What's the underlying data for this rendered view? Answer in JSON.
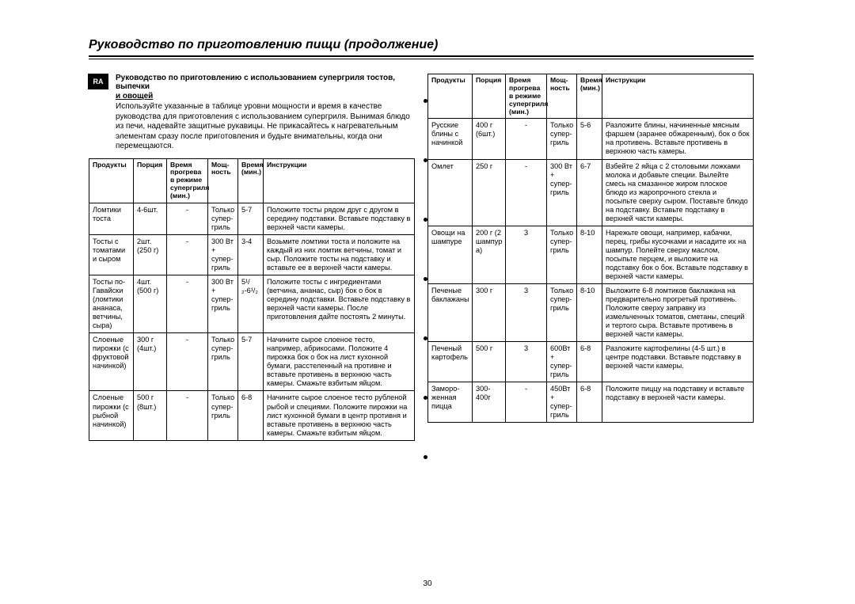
{
  "page": {
    "title": "Руководство по приготовлению пищи (продолжение)",
    "ra_label": "RA",
    "page_number": "30"
  },
  "intro": {
    "heading": "Руководство по приготовлению с использованием супергриля тостов, выпечки",
    "sub": "и овощей",
    "text": "Используйте указанные в таблице уровни мощности и время в качестве руководства для приготовления с использованием супергриля. Вынимая блюдо из печи, надевайте защитные рукавицы. Не прикасайтесь к нагревательным элементам сразу после приготовления и будьте внимательны, когда они перемещаются."
  },
  "headers": {
    "product": "Продукты",
    "portion": "Порция",
    "warmup": "Время прогрева в режиме супергриля (мин.)",
    "power": "Мощ-\nность",
    "time": "Время (мин.)",
    "instructions": "Инструкции"
  },
  "table_left": {
    "rows": [
      {
        "product": "Ломтики тоста",
        "portion": "4-6шт.",
        "warmup": "-",
        "power": "Только супер-гриль",
        "time": "5-7",
        "instr": "Положите тосты рядом друг с другом в середину подставки. Вставьте подставку в верхней части камеры."
      },
      {
        "product": "Тосты с томатами и сыром",
        "portion": "2шт. (250 г)",
        "warmup": "-",
        "power": "300 Вт + супер-гриль",
        "time": "3-4",
        "instr": "Возьмите ломтики тоста и положите на каждый из них ломтик ветчины, томат и сыр. Положите тосты на подставку и вставьте ее в верхней части камеры."
      },
      {
        "product": "Тосты по-Гавайски (ломтики ананаса, ветчины, сыра)",
        "portion": "4шт. (500 г)",
        "warmup": "-",
        "power": "300 Вт + супер-гриль",
        "time": "5¹/₂-6¹/₂",
        "instr": "Положите тосты с ингредиентами (ветчина, ананас, сыр) бок о бок в середину подставки. Вставьте подставку в верхней части камеры. После приготовления дайте постоять 2 минуты."
      },
      {
        "product": "Слоеные пирожки (с фруктовой начинкой)",
        "portion": "300 г (4шт.)",
        "warmup": "-",
        "power": "Только супер-гриль",
        "time": "5-7",
        "instr": "Начините сырое слоеное тесто, например, абрикосами. Положите 4 пирожка бок о бок на лист кухонной бумаги, расстеленный на противне и вставьте противень в верхнюю часть камеры. Смажьте взбитым яйцом."
      },
      {
        "product": "Слоеные пирожки (с рыбной начинкой)",
        "portion": "500 г (8шт.)",
        "warmup": "-",
        "power": "Только супер-гриль",
        "time": "6-8",
        "instr": "Начините сырое слоеное тесто рубленой рыбой и специями. Положите пирожки на лист кухонной бумаги в центр противня и вставьте противень в верхнюю часть камеры. Смажьте взбитым яйцом."
      }
    ]
  },
  "table_right": {
    "rows": [
      {
        "product": "Русские блины с начинкой",
        "portion": "400 г (6шт.)",
        "warmup": "-",
        "power": "Только супер-гриль",
        "time": "5-6",
        "instr": "Разложите блины, начиненные мясным фаршем (заранее обжаренным), бок о бок на противень. Вставьте противень в верхнюю часть камеры."
      },
      {
        "product": "Омлет",
        "portion": "250 г",
        "warmup": "-",
        "power": "300 Вт + супер-гриль",
        "time": "6-7",
        "instr": "Взбейте 2 яйца с 2 столовыми ложками молока и добавьте специи. Вылейте смесь на смазанное жиром плоское блюдо из жаропрочного стекла и посыпьте сверху сыром. Поставьте блюдо на подставку. Вставьте подставку в верхней части камеры."
      },
      {
        "product": "Овощи на шампуре",
        "portion": "200 г (2 шампур а)",
        "warmup": "3",
        "power": "Только супер-гриль",
        "time": "8-10",
        "instr": "Нарежьте овощи, например, кабачки, перец, грибы кусочками и насадите их на шампур. Полейте сверху маслом, посыпьте перцем, и выложите на подставку бок о бок. Вставьте подставку в верхней части камеры."
      },
      {
        "product": "Печеные баклажаны",
        "portion": "300 г",
        "warmup": "3",
        "power": "Только супер-гриль",
        "time": "8-10",
        "instr": "Выложите 6-8 ломтиков баклажана на предварительно прогретый противень. Положите сверху заправку из измельченных томатов, сметаны, специй и тертого сыра. Вставьте противень в верхней части камеры."
      },
      {
        "product": "Печеный картофель",
        "portion": "500 г",
        "warmup": "3",
        "power": "600Вт + супер-гриль",
        "time": "6-8",
        "instr": "Разложите картофелины (4-5 шт.) в центре подставки. Вставьте подставку в верхней части камеры."
      },
      {
        "product": "Заморо-женная пицца",
        "portion": "300-400г",
        "warmup": "-",
        "power": "450Вт + супер-гриль",
        "time": "6-8",
        "instr": "Положите пиццу на подставку и вставьте подставку в верхней части камеры."
      }
    ]
  }
}
